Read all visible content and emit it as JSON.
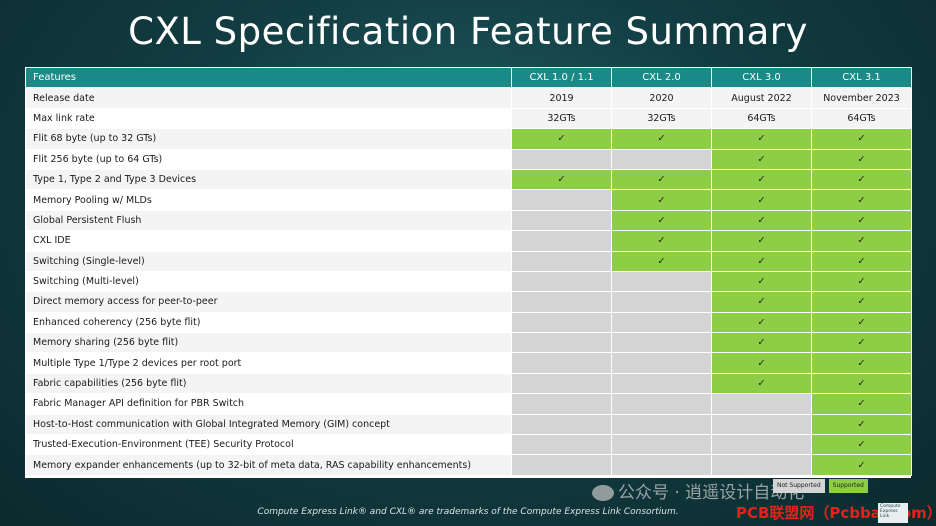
{
  "title": "CXL Specification Feature Summary",
  "table": {
    "headers": [
      "Features",
      "CXL 1.0 / 1.1",
      "CXL 2.0",
      "CXL 3.0",
      "CXL 3.1"
    ],
    "text_rows": [
      {
        "feature": "Release date",
        "values": [
          "2019",
          "2020",
          "August 2022",
          "November 2023"
        ]
      },
      {
        "feature": "Max link rate",
        "values": [
          "32GTs",
          "32GTs",
          "64GTs",
          "64GTs"
        ]
      }
    ],
    "check_symbol": "✓",
    "support_rows": [
      {
        "feature": "Flit 68 byte (up to 32 GTs)",
        "support": [
          true,
          true,
          true,
          true
        ]
      },
      {
        "feature": "Flit 256 byte (up to 64 GTs)",
        "support": [
          false,
          false,
          true,
          true
        ]
      },
      {
        "feature": "Type 1, Type 2 and Type 3 Devices",
        "support": [
          true,
          true,
          true,
          true
        ]
      },
      {
        "feature": "Memory Pooling w/ MLDs",
        "support": [
          false,
          true,
          true,
          true
        ]
      },
      {
        "feature": "Global Persistent Flush",
        "support": [
          false,
          true,
          true,
          true
        ]
      },
      {
        "feature": "CXL IDE",
        "support": [
          false,
          true,
          true,
          true
        ]
      },
      {
        "feature": "Switching (Single-level)",
        "support": [
          false,
          true,
          true,
          true
        ]
      },
      {
        "feature": "Switching (Multi-level)",
        "support": [
          false,
          false,
          true,
          true
        ]
      },
      {
        "feature": "Direct memory access for peer-to-peer",
        "support": [
          false,
          false,
          true,
          true
        ]
      },
      {
        "feature": "Enhanced coherency (256 byte flit)",
        "support": [
          false,
          false,
          true,
          true
        ]
      },
      {
        "feature": "Memory sharing (256 byte flit)",
        "support": [
          false,
          false,
          true,
          true
        ]
      },
      {
        "feature": "Multiple Type 1/Type 2 devices per root port",
        "support": [
          false,
          false,
          true,
          true
        ]
      },
      {
        "feature": "Fabric capabilities (256 byte flit)",
        "support": [
          false,
          false,
          true,
          true
        ]
      },
      {
        "feature": "Fabric Manager API definition for PBR Switch",
        "support": [
          false,
          false,
          false,
          true
        ]
      },
      {
        "feature": "Host-to-Host communication with Global Integrated Memory (GIM) concept",
        "support": [
          false,
          false,
          false,
          true
        ]
      },
      {
        "feature": "Trusted-Execution-Environment (TEE) Security Protocol",
        "support": [
          false,
          false,
          false,
          true
        ]
      },
      {
        "feature": "Memory expander enhancements (up to 32-bit of meta data, RAS capability enhancements)",
        "support": [
          false,
          false,
          false,
          true
        ]
      }
    ]
  },
  "legend": {
    "not_supported": "Not Supported",
    "supported": "Supported"
  },
  "footer": "Compute Express Link® and CXL® are trademarks of the Compute Express Link Consortium.",
  "watermark": {
    "wechat": "公众号 · 逍遥设计自动化",
    "pcb": "PCB联盟网（Pcbbar.com）"
  },
  "logo_text": "Compute Express Link",
  "colors": {
    "header": "#1a8a86",
    "supported": "#8dce46",
    "not_supported": "#d4d4d4",
    "background": "#123d42"
  }
}
